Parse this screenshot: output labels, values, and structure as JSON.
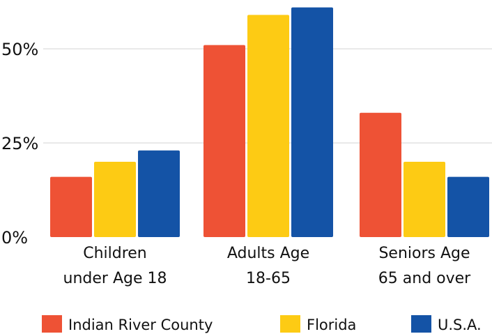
{
  "chart_data": {
    "type": "bar",
    "categories": [
      [
        "Children",
        "under Age 18"
      ],
      [
        "Adults Age",
        "18-65"
      ],
      [
        "Seniors Age",
        "65 and over"
      ]
    ],
    "y_ticks": [
      {
        "value": 0,
        "label": "0%"
      },
      {
        "value": 25,
        "label": "25%"
      },
      {
        "value": 50,
        "label": "50%"
      }
    ],
    "ylim": [
      0,
      61
    ],
    "grid": true,
    "legend_position": "bottom",
    "series": [
      {
        "name": "Indian River County",
        "color": "#EE5235",
        "values": [
          16,
          51,
          33
        ]
      },
      {
        "name": "Florida",
        "color": "#FDCB14",
        "values": [
          20,
          59,
          20
        ]
      },
      {
        "name": "U.S.A.",
        "color": "#1453A6",
        "values": [
          23,
          61,
          16
        ]
      }
    ]
  }
}
